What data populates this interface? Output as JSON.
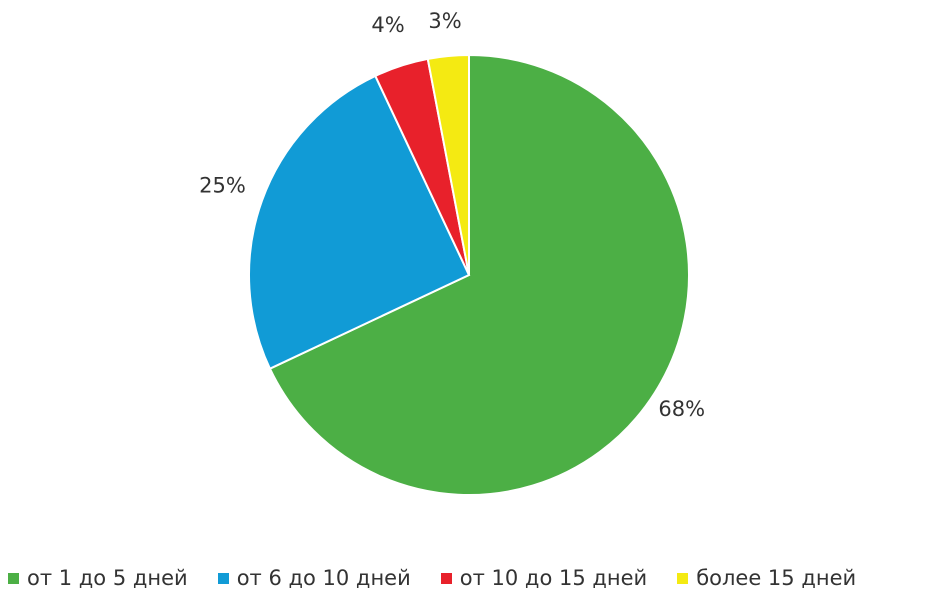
{
  "chart_data": {
    "type": "pie",
    "title": "",
    "slices": [
      {
        "label": "от 1 до 5 дней",
        "value": 68,
        "value_label": "68%",
        "color": "#4caf45"
      },
      {
        "label": "от 6 до 10 дней",
        "value": 25,
        "value_label": "25%",
        "color": "#119bd6"
      },
      {
        "label": "от 10 до 15 дней",
        "value": 4,
        "value_label": "4%",
        "color": "#e8212b"
      },
      {
        "label": "более 15 дней",
        "value": 3,
        "value_label": "3%",
        "color": "#f4ea12"
      }
    ],
    "start_angle": "12 o'clock",
    "direction": "clockwise",
    "legend_position": "bottom"
  }
}
